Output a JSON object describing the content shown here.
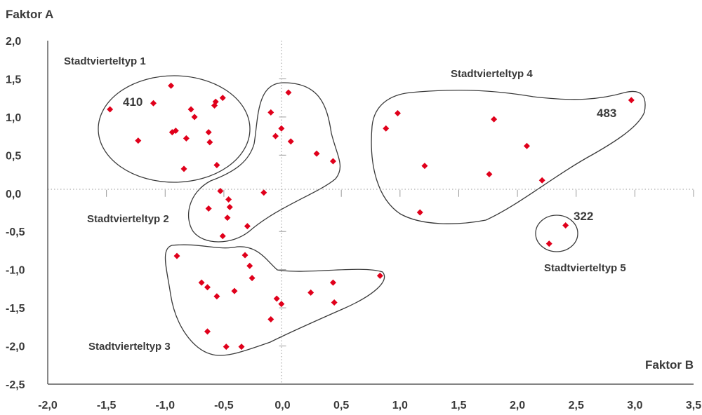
{
  "chart_data": {
    "type": "scatter",
    "title": "",
    "xlabel": "Faktor B",
    "ylabel": "Faktor A",
    "xlim": [
      -2.0,
      3.5
    ],
    "ylim": [
      -2.5,
      2.0
    ],
    "x_ticks": [
      "-2,0",
      "-1,5",
      "-1,0",
      "-0,5",
      "0,0",
      "0,5",
      "1,0",
      "1,5",
      "2,0",
      "2,5",
      "3,0",
      "3,5"
    ],
    "y_ticks": [
      "2,0",
      "1,5",
      "1,0",
      "0,5",
      "0,0",
      "-0,5",
      "-1,0",
      "-1,5",
      "-2,0",
      "-2,5"
    ],
    "marker_color": "#e0001b",
    "grid": false,
    "points": [
      [
        -1.47,
        1.1
      ],
      [
        -0.95,
        1.41
      ],
      [
        -1.1,
        1.18
      ],
      [
        -0.78,
        1.1
      ],
      [
        -0.75,
        1.0
      ],
      [
        -0.58,
        1.15
      ],
      [
        -0.57,
        1.2
      ],
      [
        -0.51,
        1.25
      ],
      [
        -0.63,
        0.8
      ],
      [
        -0.62,
        0.67
      ],
      [
        -0.94,
        0.8
      ],
      [
        -0.91,
        0.82
      ],
      [
        -0.82,
        0.72
      ],
      [
        -1.23,
        0.69
      ],
      [
        -0.84,
        0.32
      ],
      [
        -0.56,
        0.37
      ],
      [
        0.05,
        1.32
      ],
      [
        -0.1,
        1.06
      ],
      [
        -0.06,
        0.75
      ],
      [
        -0.01,
        0.85
      ],
      [
        0.07,
        0.68
      ],
      [
        0.29,
        0.52
      ],
      [
        0.43,
        0.42
      ],
      [
        -0.53,
        0.03
      ],
      [
        -0.16,
        0.01
      ],
      [
        -0.63,
        -0.2
      ],
      [
        -0.46,
        -0.08
      ],
      [
        -0.45,
        -0.18
      ],
      [
        -0.47,
        -0.32
      ],
      [
        -0.3,
        -0.43
      ],
      [
        -0.51,
        -0.56
      ],
      [
        -0.9,
        -0.82
      ],
      [
        -0.32,
        -0.81
      ],
      [
        -0.28,
        -0.95
      ],
      [
        -0.26,
        -1.11
      ],
      [
        -0.69,
        -1.17
      ],
      [
        -0.64,
        -1.23
      ],
      [
        -0.56,
        -1.35
      ],
      [
        -0.41,
        -1.28
      ],
      [
        -0.05,
        -1.38
      ],
      [
        -0.01,
        -1.45
      ],
      [
        0.24,
        -1.3
      ],
      [
        0.43,
        -1.17
      ],
      [
        0.44,
        -1.43
      ],
      [
        0.83,
        -1.08
      ],
      [
        -0.1,
        -1.65
      ],
      [
        -0.64,
        -1.81
      ],
      [
        -0.48,
        -2.01
      ],
      [
        -0.35,
        -2.01
      ],
      [
        0.98,
        1.05
      ],
      [
        0.88,
        0.85
      ],
      [
        1.21,
        0.36
      ],
      [
        1.8,
        0.97
      ],
      [
        2.08,
        0.62
      ],
      [
        1.76,
        0.25
      ],
      [
        2.21,
        0.17
      ],
      [
        1.17,
        -0.25
      ],
      [
        2.97,
        1.22
      ],
      [
        2.41,
        -0.42
      ],
      [
        2.27,
        -0.66
      ]
    ],
    "groups": [
      {
        "label": "Stadtvierteltyp 1",
        "annotation": "410"
      },
      {
        "label": "Stadtvierteltyp 2",
        "annotation": ""
      },
      {
        "label": "Stadtvierteltyp 3",
        "annotation": ""
      },
      {
        "label": "Stadtvierteltyp 4",
        "annotation": "483"
      },
      {
        "label": "Stadtvierteltyp 5",
        "annotation": "322"
      }
    ]
  }
}
